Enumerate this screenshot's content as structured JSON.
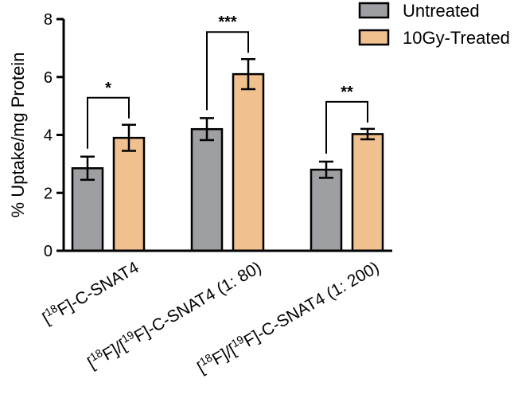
{
  "chart_data": {
    "type": "bar",
    "title": "",
    "xlabel": "",
    "ylabel": "% Uptake/mg Protein",
    "ylim": [
      0,
      8
    ],
    "yticks": [
      0,
      2,
      4,
      6,
      8
    ],
    "legend_position": "top-right",
    "categories": [
      {
        "pre": "[",
        "sup1": "18",
        "mid": "F]",
        "sup2": "",
        "post": "-C-SNAT4"
      },
      {
        "pre": "[",
        "sup1": "18",
        "mid": "F]/[",
        "sup2": "19",
        "post": "F]-C-SNAT4 (1: 80)"
      },
      {
        "pre": "[",
        "sup1": "18",
        "mid": "F]/[",
        "sup2": "19",
        "post": "F]-C-SNAT4 (1: 200)"
      }
    ],
    "series": [
      {
        "name": "Untreated",
        "color": "#9d9fa3",
        "values": [
          2.85,
          4.2,
          2.8
        ],
        "errors": [
          0.4,
          0.38,
          0.28
        ]
      },
      {
        "name": "10Gy-Treated",
        "color": "#f0c08e",
        "values": [
          3.9,
          6.1,
          4.03
        ],
        "errors": [
          0.45,
          0.52,
          0.18
        ]
      }
    ],
    "significance": [
      "*",
      "***",
      "**"
    ]
  }
}
